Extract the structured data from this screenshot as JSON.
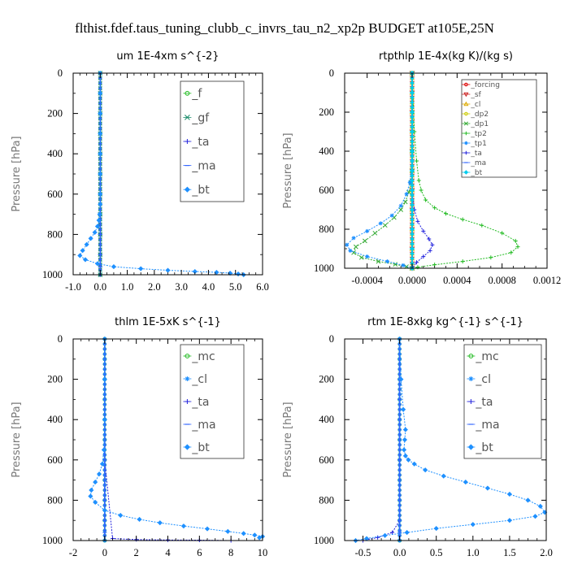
{
  "title": "flthist.fdef.taus_tuning_clubb_c_invrs_tau_n2_xp2p  BUDGET at105E,25N",
  "chart_data": [
    {
      "type": "line",
      "title": "um   1E-4xm s^{-2}",
      "ylabel": "Pressure [hPa]",
      "xlim": [
        -1,
        6
      ],
      "ylim": [
        1000,
        0
      ],
      "xticks": [
        "-1.0",
        "0.0",
        "1.0",
        "2.0",
        "3.0",
        "4.0",
        "5.0",
        "6.0"
      ],
      "xtick_values": [
        -1,
        0,
        1,
        2,
        3,
        4,
        5,
        6
      ],
      "yticks": [
        "0",
        "200",
        "400",
        "600",
        "800",
        "1000"
      ],
      "ytick_values": [
        0,
        200,
        400,
        600,
        800,
        1000
      ],
      "legend": "top-right",
      "series": [
        {
          "name": "_f",
          "color": "#22bb22",
          "marker": "o",
          "x": [
            0,
            0,
            0,
            0,
            0,
            0,
            0,
            0,
            0,
            0,
            0
          ],
          "y": [
            0,
            100,
            200,
            300,
            400,
            500,
            600,
            700,
            800,
            900,
            1000
          ]
        },
        {
          "name": "_gf",
          "color": "#1a8c6a",
          "marker": "x",
          "x": [
            0,
            0,
            0,
            0,
            0,
            0,
            0,
            0,
            0,
            0,
            0
          ],
          "y": [
            0,
            100,
            200,
            300,
            400,
            500,
            600,
            700,
            800,
            900,
            1000
          ]
        },
        {
          "name": "_ta",
          "color": "#2222dd",
          "marker": "+",
          "x": [
            0,
            0,
            0,
            0,
            0,
            0,
            0,
            0
          ],
          "y": [
            0,
            200,
            400,
            600,
            800,
            900,
            960,
            1000
          ]
        },
        {
          "name": "_ma",
          "color": "#3366ff",
          "marker": "-",
          "x": [
            0,
            0,
            0,
            0,
            0,
            0,
            0,
            0
          ],
          "y": [
            0,
            200,
            400,
            600,
            800,
            900,
            960,
            1000
          ]
        },
        {
          "name": "_bt",
          "color": "#1e90ff",
          "marker": "d",
          "x": [
            0,
            0,
            0,
            0,
            0,
            0,
            0,
            0,
            -0.02,
            -0.05,
            -0.1,
            -0.2,
            -0.35,
            -0.5,
            -0.65,
            -0.75,
            -0.55,
            -0.1,
            0.5,
            1.5,
            2.5,
            3.5,
            4.3,
            4.8,
            5.1,
            5.3
          ],
          "y": [
            0,
            100,
            200,
            300,
            400,
            500,
            600,
            650,
            700,
            730,
            760,
            790,
            820,
            850,
            880,
            905,
            925,
            945,
            960,
            970,
            978,
            984,
            988,
            992,
            996,
            1000
          ]
        }
      ]
    },
    {
      "type": "line",
      "title": "rtpthlp   1E-4x(kg K)/(kg s)",
      "ylabel": "Pressure [hPa]",
      "xlim": [
        -0.0006,
        0.0012
      ],
      "ylim": [
        1000,
        0
      ],
      "xticks": [
        "-0.0004",
        "0.0000",
        "0.0004",
        "0.0008",
        "0.0012"
      ],
      "xtick_values": [
        -0.0004,
        0,
        0.0004,
        0.0008,
        0.0012
      ],
      "yticks": [
        "0",
        "200",
        "400",
        "600",
        "800",
        "1000"
      ],
      "ytick_values": [
        0,
        200,
        400,
        600,
        800,
        1000
      ],
      "legend": "top-right",
      "series": [
        {
          "name": "_forcing",
          "color": "#dd0000",
          "marker": "o",
          "x": [
            0,
            0,
            0,
            0,
            0,
            0,
            0,
            0,
            0,
            0,
            0
          ],
          "y": [
            0,
            100,
            200,
            300,
            400,
            500,
            600,
            700,
            800,
            900,
            1000
          ]
        },
        {
          "name": "_sf",
          "color": "#cc2222",
          "marker": "v",
          "x": [
            0,
            0,
            0,
            0,
            0,
            0,
            0,
            0,
            0,
            0,
            0
          ],
          "y": [
            0,
            100,
            200,
            300,
            400,
            500,
            600,
            700,
            800,
            900,
            1000
          ]
        },
        {
          "name": "_cl",
          "color": "#ddaa00",
          "marker": "^",
          "x": [
            0,
            0,
            0,
            0,
            0,
            0,
            0,
            0,
            0,
            0,
            0
          ],
          "y": [
            0,
            100,
            200,
            300,
            400,
            500,
            600,
            700,
            800,
            900,
            1000
          ]
        },
        {
          "name": "_dp2",
          "color": "#cccc00",
          "marker": "o",
          "x": [
            0,
            0,
            0,
            0,
            0,
            0,
            0,
            0,
            0,
            0,
            0
          ],
          "y": [
            0,
            100,
            200,
            300,
            400,
            500,
            600,
            700,
            800,
            900,
            1000
          ]
        },
        {
          "name": "_dp1",
          "color": "#33aa33",
          "marker": "x",
          "x": [
            0,
            0,
            0,
            -1e-05,
            -3e-05,
            -6e-05,
            -0.0001,
            -0.00016,
            -0.00024,
            -0.00033,
            -0.00042,
            -0.0005,
            -0.00052,
            -0.00045,
            -0.0003,
            -0.00015,
            -5e-05,
            0
          ],
          "y": [
            0,
            400,
            500,
            560,
            610,
            660,
            700,
            740,
            780,
            820,
            860,
            890,
            920,
            945,
            965,
            980,
            992,
            1000
          ]
        },
        {
          "name": "_tp2",
          "color": "#22bb22",
          "marker": "+",
          "x": [
            0,
            2e-05,
            4e-05,
            6e-05,
            8e-05,
            0.00012,
            0.0002,
            0.0003,
            0.00045,
            0.00062,
            0.0008,
            0.00092,
            0.00094,
            0.00088,
            0.0007,
            0.00045,
            0.0002,
            5e-05,
            0
          ],
          "y": [
            0,
            300,
            450,
            550,
            600,
            650,
            690,
            720,
            750,
            780,
            820,
            860,
            890,
            920,
            945,
            965,
            982,
            995,
            1000
          ]
        },
        {
          "name": "_tp1",
          "color": "#1e90ff",
          "marker": "*",
          "x": [
            0,
            0,
            -2e-05,
            -5e-05,
            -0.0001,
            -0.00018,
            -0.00028,
            -0.0004,
            -0.00052,
            -0.00058,
            -0.00055,
            -0.0004,
            -0.00022,
            -8e-05,
            0
          ],
          "y": [
            0,
            450,
            560,
            620,
            680,
            730,
            770,
            810,
            845,
            880,
            910,
            940,
            965,
            985,
            1000
          ]
        },
        {
          "name": "_ta",
          "color": "#2222dd",
          "marker": "+",
          "x": [
            0,
            0,
            2e-05,
            5e-05,
            0.0001,
            0.00015,
            0.00018,
            0.00016,
            0.0001,
            4e-05,
            0
          ],
          "y": [
            0,
            600,
            700,
            760,
            810,
            850,
            880,
            910,
            940,
            970,
            1000
          ]
        },
        {
          "name": "_ma",
          "color": "#3366ff",
          "marker": "-",
          "x": [
            0,
            0,
            0,
            0,
            0,
            0,
            0,
            0,
            0,
            0,
            0
          ],
          "y": [
            0,
            100,
            200,
            300,
            400,
            500,
            600,
            700,
            800,
            900,
            1000
          ]
        },
        {
          "name": "_bt",
          "color": "#00ccee",
          "marker": "d",
          "x": [
            0,
            0,
            0,
            0,
            0,
            0,
            0,
            0,
            0,
            0,
            0
          ],
          "y": [
            0,
            100,
            200,
            300,
            400,
            500,
            600,
            700,
            800,
            900,
            1000
          ]
        }
      ]
    },
    {
      "type": "line",
      "title": "thlm   1E-5xK s^{-1}",
      "ylabel": "Pressure [hPa]",
      "xlim": [
        -2,
        10
      ],
      "ylim": [
        1000,
        0
      ],
      "xticks": [
        "-2",
        "0",
        "2",
        "4",
        "6",
        "8",
        "10"
      ],
      "xtick_values": [
        -2,
        0,
        2,
        4,
        6,
        8,
        10
      ],
      "yticks": [
        "0",
        "200",
        "400",
        "600",
        "800",
        "1000"
      ],
      "ytick_values": [
        0,
        200,
        400,
        600,
        800,
        1000
      ],
      "legend": "top-right",
      "series": [
        {
          "name": "_mc",
          "color": "#22bb22",
          "marker": "o",
          "x": [
            0,
            0,
            0,
            0,
            0,
            0,
            0,
            0,
            0,
            0,
            0
          ],
          "y": [
            0,
            100,
            200,
            300,
            400,
            500,
            600,
            700,
            800,
            900,
            1000
          ]
        },
        {
          "name": "_cl",
          "color": "#1e90ff",
          "marker": "*",
          "x": [
            0,
            0,
            0,
            0,
            0,
            0,
            0,
            0,
            0,
            0,
            0
          ],
          "y": [
            0,
            100,
            200,
            300,
            400,
            500,
            600,
            700,
            800,
            900,
            1000
          ]
        },
        {
          "name": "_ta",
          "color": "#2222dd",
          "marker": "+",
          "x": [
            0,
            0,
            0,
            0,
            0.5,
            2,
            4,
            6,
            8
          ],
          "y": [
            0,
            200,
            400,
            600,
            990,
            995,
            997,
            998,
            1000
          ]
        },
        {
          "name": "_ma",
          "color": "#3366ff",
          "marker": "-",
          "x": [
            0,
            0,
            0,
            0,
            0,
            0,
            0,
            0
          ],
          "y": [
            0,
            200,
            400,
            600,
            800,
            900,
            960,
            1000
          ]
        },
        {
          "name": "_bt",
          "color": "#1e90ff",
          "marker": "d",
          "x": [
            0,
            0,
            0,
            -0.05,
            -0.15,
            -0.35,
            -0.6,
            -0.85,
            -0.9,
            -0.6,
            0,
            1,
            2.2,
            3.5,
            5,
            6.5,
            7.8,
            8.8,
            9.5,
            10,
            9.8
          ],
          "y": [
            0,
            200,
            400,
            550,
            620,
            670,
            710,
            750,
            780,
            810,
            850,
            875,
            895,
            912,
            928,
            942,
            955,
            965,
            973,
            980,
            986
          ]
        }
      ]
    },
    {
      "type": "line",
      "title": "rtm   1E-8xkg kg^{-1} s^{-1}",
      "ylabel": "Pressure [hPa]",
      "xlim": [
        -0.75,
        2.0
      ],
      "ylim": [
        1000,
        0
      ],
      "xticks": [
        "-0.5",
        "0.0",
        "0.5",
        "1.0",
        "1.5",
        "2.0"
      ],
      "xtick_values": [
        -0.5,
        0,
        0.5,
        1,
        1.5,
        2
      ],
      "yticks": [
        "0",
        "200",
        "400",
        "600",
        "800",
        "1000"
      ],
      "ytick_values": [
        0,
        200,
        400,
        600,
        800,
        1000
      ],
      "legend": "top-right",
      "series": [
        {
          "name": "_mc",
          "color": "#22bb22",
          "marker": "o",
          "x": [
            0,
            0,
            0,
            0,
            0,
            0,
            0,
            0,
            0,
            0,
            0
          ],
          "y": [
            0,
            100,
            200,
            300,
            400,
            500,
            600,
            700,
            800,
            900,
            1000
          ]
        },
        {
          "name": "_cl",
          "color": "#1e90ff",
          "marker": "*",
          "x": [
            0,
            0,
            0,
            0,
            0,
            0,
            0,
            0,
            0,
            0,
            0
          ],
          "y": [
            0,
            100,
            200,
            300,
            400,
            500,
            600,
            700,
            800,
            900,
            1000
          ]
        },
        {
          "name": "_ta",
          "color": "#2222dd",
          "marker": "+",
          "x": [
            0,
            0,
            0,
            0,
            -0.1,
            -0.3,
            -0.5
          ],
          "y": [
            0,
            300,
            600,
            900,
            960,
            985,
            1000
          ]
        },
        {
          "name": "_ma",
          "color": "#3366ff",
          "marker": "-",
          "x": [
            0,
            0,
            0,
            0,
            0,
            0,
            0,
            0
          ],
          "y": [
            0,
            200,
            400,
            600,
            800,
            900,
            960,
            1000
          ]
        },
        {
          "name": "_bt",
          "color": "#1e90ff",
          "marker": "d",
          "x": [
            0,
            0.02,
            0.05,
            0.08,
            0.07,
            0.06,
            0.08,
            0.12,
            0.2,
            0.35,
            0.6,
            0.9,
            1.2,
            1.5,
            1.75,
            1.92,
            1.98,
            1.85,
            1.5,
            1.0,
            0.5,
            0.1,
            -0.2,
            -0.45,
            -0.6
          ],
          "y": [
            0,
            200,
            350,
            450,
            500,
            550,
            580,
            600,
            620,
            650,
            680,
            710,
            740,
            770,
            800,
            830,
            860,
            880,
            900,
            920,
            940,
            960,
            975,
            990,
            1000
          ]
        }
      ]
    }
  ]
}
